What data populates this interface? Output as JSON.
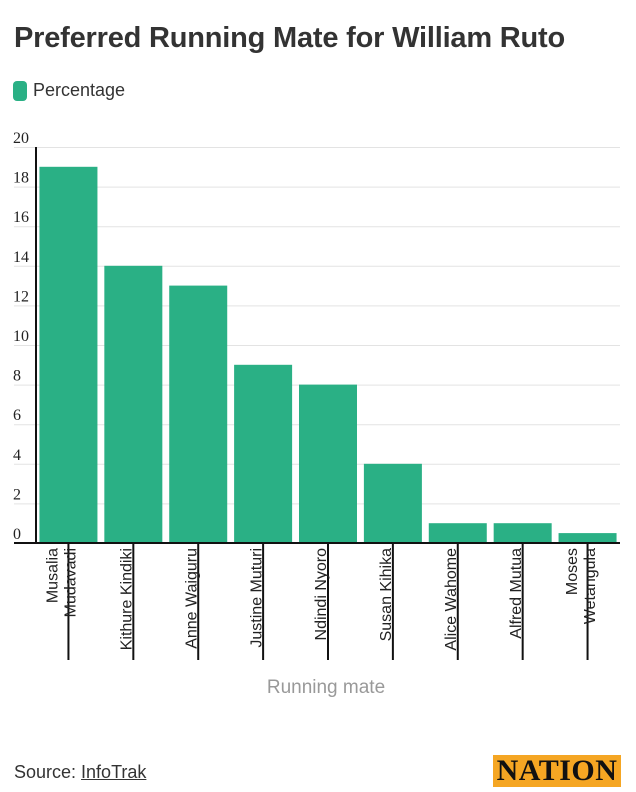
{
  "title": "Preferred Running Mate for William Ruto",
  "legend": {
    "label": "Percentage",
    "color": "#2ab085"
  },
  "chart_data": {
    "type": "bar",
    "categories": [
      [
        "Musalia",
        "Mudavadi"
      ],
      [
        "Kithure Kindiki"
      ],
      [
        "Anne Waiguru"
      ],
      [
        "Justine Muturi"
      ],
      [
        "Ndindi Nyoro"
      ],
      [
        "Susan Kihika"
      ],
      [
        "Alice Wahome"
      ],
      [
        "Alfred Mutua"
      ],
      [
        "Moses",
        "Wetangula"
      ]
    ],
    "series": [
      {
        "name": "Percentage",
        "values": [
          19,
          14,
          13,
          9,
          8,
          4,
          1,
          1,
          0.5
        ]
      }
    ],
    "xlabel": "Running mate",
    "ylabel": "",
    "ylim": [
      0,
      20
    ],
    "yticks": [
      0,
      2,
      4,
      6,
      8,
      10,
      12,
      14,
      16,
      18,
      20
    ],
    "grid": true,
    "legend_position": "top-left",
    "colors": {
      "bar": "#2ab085",
      "grid": "#e3e3e3",
      "axis": "#111111",
      "xlabel": "#999999"
    }
  },
  "footer": {
    "source_prefix": "Source: ",
    "source_link": "InfoTrak"
  },
  "logo": {
    "text": "NATION",
    "color": "#f5a623"
  }
}
